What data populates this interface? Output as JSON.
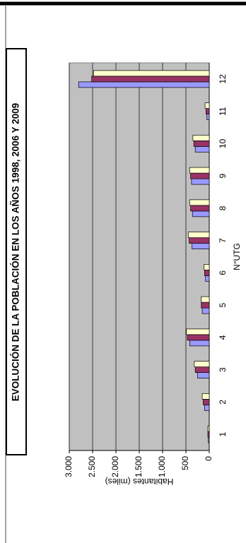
{
  "chart_data": {
    "type": "bar",
    "title": "EVOLUCIÓN DE LA POBLACIÓN EN LOS AÑOS 1998, 2006 Y 2009",
    "x_label": "N°UTG",
    "y_label": "Habitantes (miles)",
    "categories": [
      "1",
      "2",
      "3",
      "4",
      "5",
      "6",
      "7",
      "8",
      "9",
      "10",
      "11",
      "12"
    ],
    "series": [
      {
        "color": "#9999ff",
        "values": [
          20,
          100,
          250,
          420,
          150,
          80,
          370,
          360,
          380,
          300,
          50,
          2800
        ]
      },
      {
        "color": "#993366",
        "values": [
          30,
          130,
          300,
          470,
          170,
          100,
          430,
          400,
          400,
          330,
          70,
          2520
        ]
      },
      {
        "color": "#ffffcc",
        "values": [
          30,
          150,
          320,
          490,
          170,
          110,
          450,
          420,
          420,
          350,
          90,
          2480
        ]
      }
    ],
    "ylim": [
      0,
      3000
    ],
    "yticks": [
      0,
      500,
      {
        "value": 1000,
        "label": "1.000"
      },
      {
        "value": 1500,
        "label": "1.500"
      },
      {
        "value": 2000,
        "label": "2.000"
      },
      {
        "value": 2500,
        "label": "2.500"
      },
      {
        "value": 3000,
        "label": "3.000"
      }
    ],
    "grid": true
  }
}
